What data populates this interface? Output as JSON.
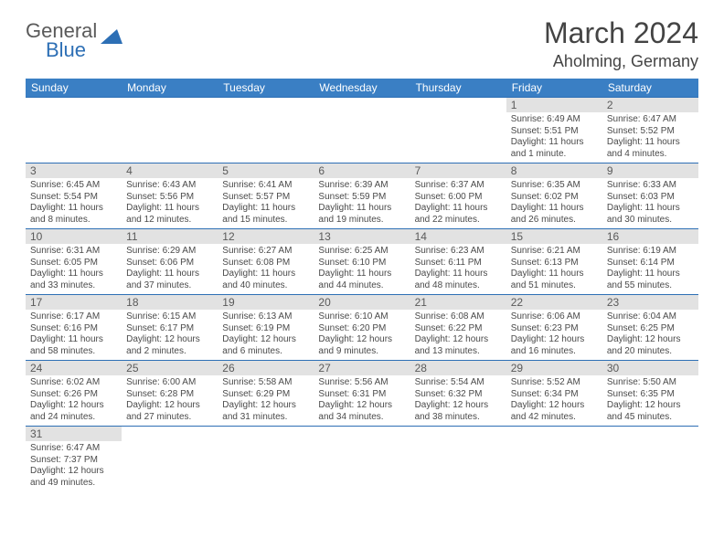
{
  "logo": {
    "text1": "General",
    "text2": "Blue",
    "shape_color": "#2d6fb5"
  },
  "title": "March 2024",
  "location": "Aholming, Germany",
  "colors": {
    "header_bg": "#3a7fc4",
    "header_text": "#ffffff",
    "border": "#2d6fb5",
    "daynum_bg": "#e2e2e2",
    "text": "#4a4a4a"
  },
  "weekdays": [
    "Sunday",
    "Monday",
    "Tuesday",
    "Wednesday",
    "Thursday",
    "Friday",
    "Saturday"
  ],
  "weeks": [
    [
      null,
      null,
      null,
      null,
      null,
      {
        "n": "1",
        "sr": "6:49 AM",
        "ss": "5:51 PM",
        "dl": "11 hours and 1 minute."
      },
      {
        "n": "2",
        "sr": "6:47 AM",
        "ss": "5:52 PM",
        "dl": "11 hours and 4 minutes."
      }
    ],
    [
      {
        "n": "3",
        "sr": "6:45 AM",
        "ss": "5:54 PM",
        "dl": "11 hours and 8 minutes."
      },
      {
        "n": "4",
        "sr": "6:43 AM",
        "ss": "5:56 PM",
        "dl": "11 hours and 12 minutes."
      },
      {
        "n": "5",
        "sr": "6:41 AM",
        "ss": "5:57 PM",
        "dl": "11 hours and 15 minutes."
      },
      {
        "n": "6",
        "sr": "6:39 AM",
        "ss": "5:59 PM",
        "dl": "11 hours and 19 minutes."
      },
      {
        "n": "7",
        "sr": "6:37 AM",
        "ss": "6:00 PM",
        "dl": "11 hours and 22 minutes."
      },
      {
        "n": "8",
        "sr": "6:35 AM",
        "ss": "6:02 PM",
        "dl": "11 hours and 26 minutes."
      },
      {
        "n": "9",
        "sr": "6:33 AM",
        "ss": "6:03 PM",
        "dl": "11 hours and 30 minutes."
      }
    ],
    [
      {
        "n": "10",
        "sr": "6:31 AM",
        "ss": "6:05 PM",
        "dl": "11 hours and 33 minutes."
      },
      {
        "n": "11",
        "sr": "6:29 AM",
        "ss": "6:06 PM",
        "dl": "11 hours and 37 minutes."
      },
      {
        "n": "12",
        "sr": "6:27 AM",
        "ss": "6:08 PM",
        "dl": "11 hours and 40 minutes."
      },
      {
        "n": "13",
        "sr": "6:25 AM",
        "ss": "6:10 PM",
        "dl": "11 hours and 44 minutes."
      },
      {
        "n": "14",
        "sr": "6:23 AM",
        "ss": "6:11 PM",
        "dl": "11 hours and 48 minutes."
      },
      {
        "n": "15",
        "sr": "6:21 AM",
        "ss": "6:13 PM",
        "dl": "11 hours and 51 minutes."
      },
      {
        "n": "16",
        "sr": "6:19 AM",
        "ss": "6:14 PM",
        "dl": "11 hours and 55 minutes."
      }
    ],
    [
      {
        "n": "17",
        "sr": "6:17 AM",
        "ss": "6:16 PM",
        "dl": "11 hours and 58 minutes."
      },
      {
        "n": "18",
        "sr": "6:15 AM",
        "ss": "6:17 PM",
        "dl": "12 hours and 2 minutes."
      },
      {
        "n": "19",
        "sr": "6:13 AM",
        "ss": "6:19 PM",
        "dl": "12 hours and 6 minutes."
      },
      {
        "n": "20",
        "sr": "6:10 AM",
        "ss": "6:20 PM",
        "dl": "12 hours and 9 minutes."
      },
      {
        "n": "21",
        "sr": "6:08 AM",
        "ss": "6:22 PM",
        "dl": "12 hours and 13 minutes."
      },
      {
        "n": "22",
        "sr": "6:06 AM",
        "ss": "6:23 PM",
        "dl": "12 hours and 16 minutes."
      },
      {
        "n": "23",
        "sr": "6:04 AM",
        "ss": "6:25 PM",
        "dl": "12 hours and 20 minutes."
      }
    ],
    [
      {
        "n": "24",
        "sr": "6:02 AM",
        "ss": "6:26 PM",
        "dl": "12 hours and 24 minutes."
      },
      {
        "n": "25",
        "sr": "6:00 AM",
        "ss": "6:28 PM",
        "dl": "12 hours and 27 minutes."
      },
      {
        "n": "26",
        "sr": "5:58 AM",
        "ss": "6:29 PM",
        "dl": "12 hours and 31 minutes."
      },
      {
        "n": "27",
        "sr": "5:56 AM",
        "ss": "6:31 PM",
        "dl": "12 hours and 34 minutes."
      },
      {
        "n": "28",
        "sr": "5:54 AM",
        "ss": "6:32 PM",
        "dl": "12 hours and 38 minutes."
      },
      {
        "n": "29",
        "sr": "5:52 AM",
        "ss": "6:34 PM",
        "dl": "12 hours and 42 minutes."
      },
      {
        "n": "30",
        "sr": "5:50 AM",
        "ss": "6:35 PM",
        "dl": "12 hours and 45 minutes."
      }
    ],
    [
      {
        "n": "31",
        "sr": "6:47 AM",
        "ss": "7:37 PM",
        "dl": "12 hours and 49 minutes."
      },
      null,
      null,
      null,
      null,
      null,
      null
    ]
  ],
  "labels": {
    "sunrise": "Sunrise: ",
    "sunset": "Sunset: ",
    "daylight": "Daylight: "
  }
}
